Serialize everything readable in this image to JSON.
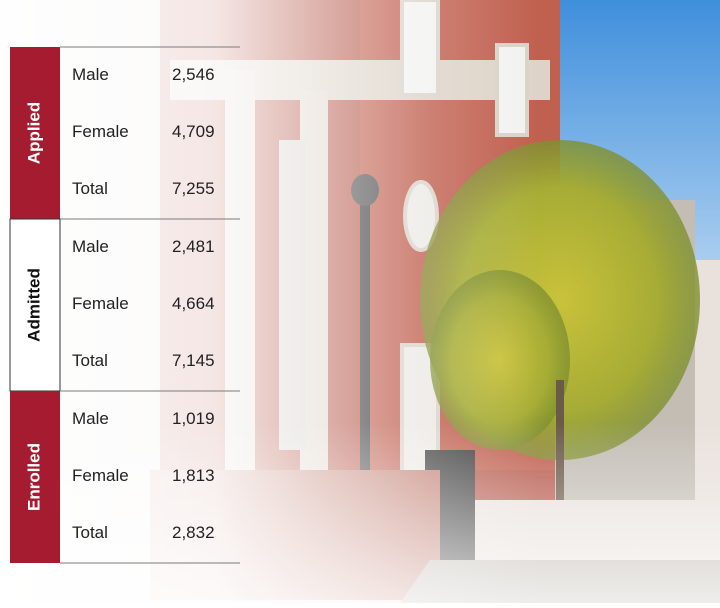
{
  "table": {
    "groups": [
      {
        "label": "Applied",
        "rows": [
          [
            "Male",
            "2,546"
          ],
          [
            "Female",
            "4,709"
          ],
          [
            "Total",
            "7,255"
          ]
        ]
      },
      {
        "label": "Admitted",
        "rows": [
          [
            "Male",
            "2,481"
          ],
          [
            "Female",
            "4,664"
          ],
          [
            "Total",
            "7,145"
          ]
        ]
      },
      {
        "label": "Enrolled",
        "rows": [
          [
            "Male",
            "1,019"
          ],
          [
            "Female",
            "1,813"
          ],
          [
            "Total",
            "2,832"
          ]
        ]
      }
    ]
  }
}
